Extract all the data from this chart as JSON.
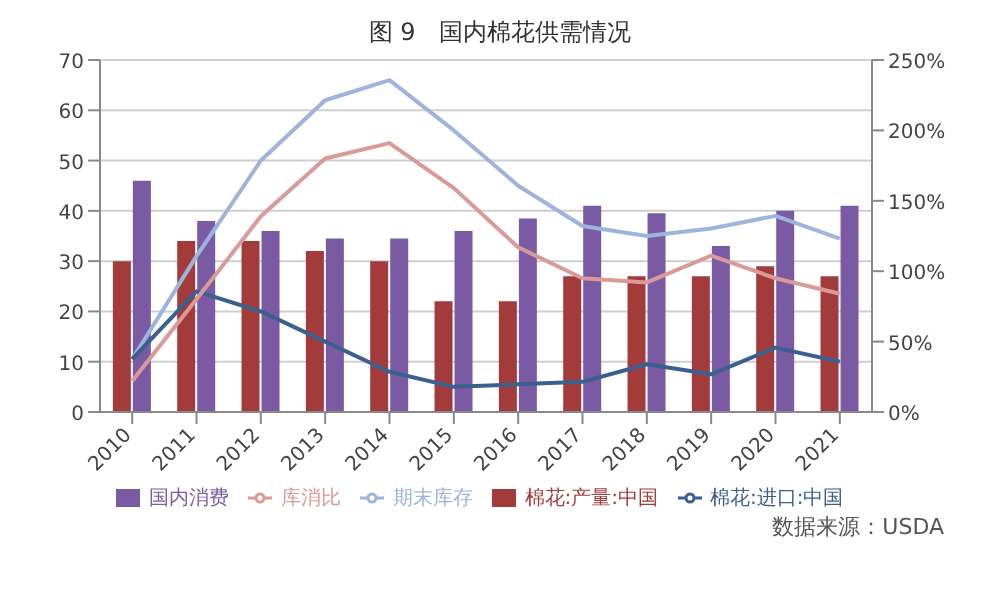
{
  "chart_data": {
    "type": "bar",
    "title": "图 9　国内棉花供需情况",
    "categories": [
      "2010",
      "2011",
      "2012",
      "2013",
      "2014",
      "2015",
      "2016",
      "2017",
      "2018",
      "2019",
      "2020",
      "2021"
    ],
    "series": [
      {
        "name": "棉花:产量:中国",
        "color": "#a33b3b",
        "values": [
          30,
          34,
          34,
          32,
          30,
          22,
          22,
          27,
          27,
          27,
          29,
          27
        ]
      },
      {
        "name": "国内消费",
        "color": "#7a5ba3",
        "values": [
          46,
          38,
          36,
          34.5,
          34.5,
          36,
          38.5,
          41,
          39.5,
          33,
          40,
          41
        ]
      },
      {
        "name": "期末库存",
        "type": "line",
        "color": "#9db4dc",
        "values": [
          10.5,
          31,
          50,
          62,
          66,
          56,
          45,
          37,
          35,
          36.5,
          39,
          34.5
        ]
      },
      {
        "name": "棉花:进口:中国",
        "type": "line",
        "color": "#3b5f8f",
        "values": [
          10.5,
          24,
          20,
          14,
          8,
          5,
          5.5,
          6,
          9.5,
          7.5,
          12.8,
          10
        ]
      },
      {
        "name": "库消比",
        "type": "line",
        "axis": "y2",
        "color": "#d99a98",
        "values": [
          22,
          80,
          139,
          180,
          191,
          159,
          117,
          95,
          92,
          111,
          95,
          84
        ]
      }
    ],
    "ylim": [
      0,
      70
    ],
    "yticks": [
      0,
      10,
      20,
      30,
      40,
      50,
      60,
      70
    ],
    "y2lim": [
      0,
      250
    ],
    "y2ticks": [
      {
        "value": 0,
        "label": "0%"
      },
      {
        "value": 50,
        "label": "50%"
      },
      {
        "value": 100,
        "label": "100%"
      },
      {
        "value": 150,
        "label": "150%"
      },
      {
        "value": 200,
        "label": "200%"
      },
      {
        "value": 250,
        "label": "250%"
      }
    ],
    "grid": "y",
    "legend": "bottom",
    "marker": "none",
    "line_style": "solid",
    "annotations": [
      "数据来源：USDA"
    ]
  }
}
